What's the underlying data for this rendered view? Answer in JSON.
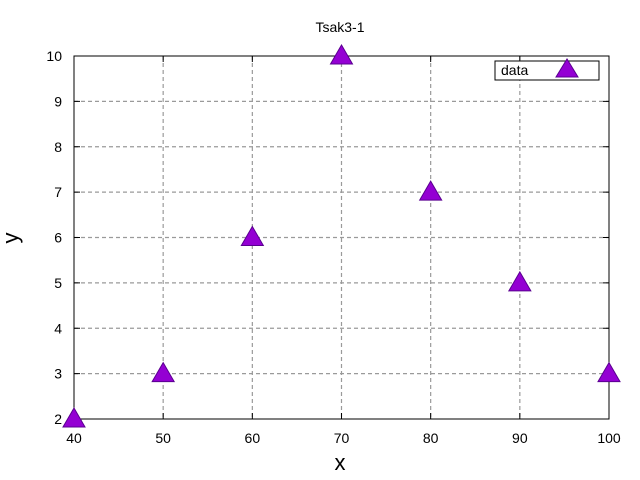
{
  "chart_data": {
    "type": "scatter",
    "title": "Tsak3-1",
    "xlabel": "x",
    "ylabel": "y",
    "xlim": [
      40,
      100
    ],
    "ylim": [
      2,
      10
    ],
    "xticks": [
      40,
      50,
      60,
      70,
      80,
      90,
      100
    ],
    "yticks": [
      2,
      3,
      4,
      5,
      6,
      7,
      8,
      9,
      10
    ],
    "grid": true,
    "legend_position": "top-right",
    "series": [
      {
        "name": "data",
        "marker": "triangle",
        "color": "#9400d3",
        "x": [
          40,
          50,
          60,
          70,
          80,
          90,
          100
        ],
        "y": [
          2,
          3,
          6,
          10,
          7,
          5,
          3
        ]
      }
    ]
  }
}
